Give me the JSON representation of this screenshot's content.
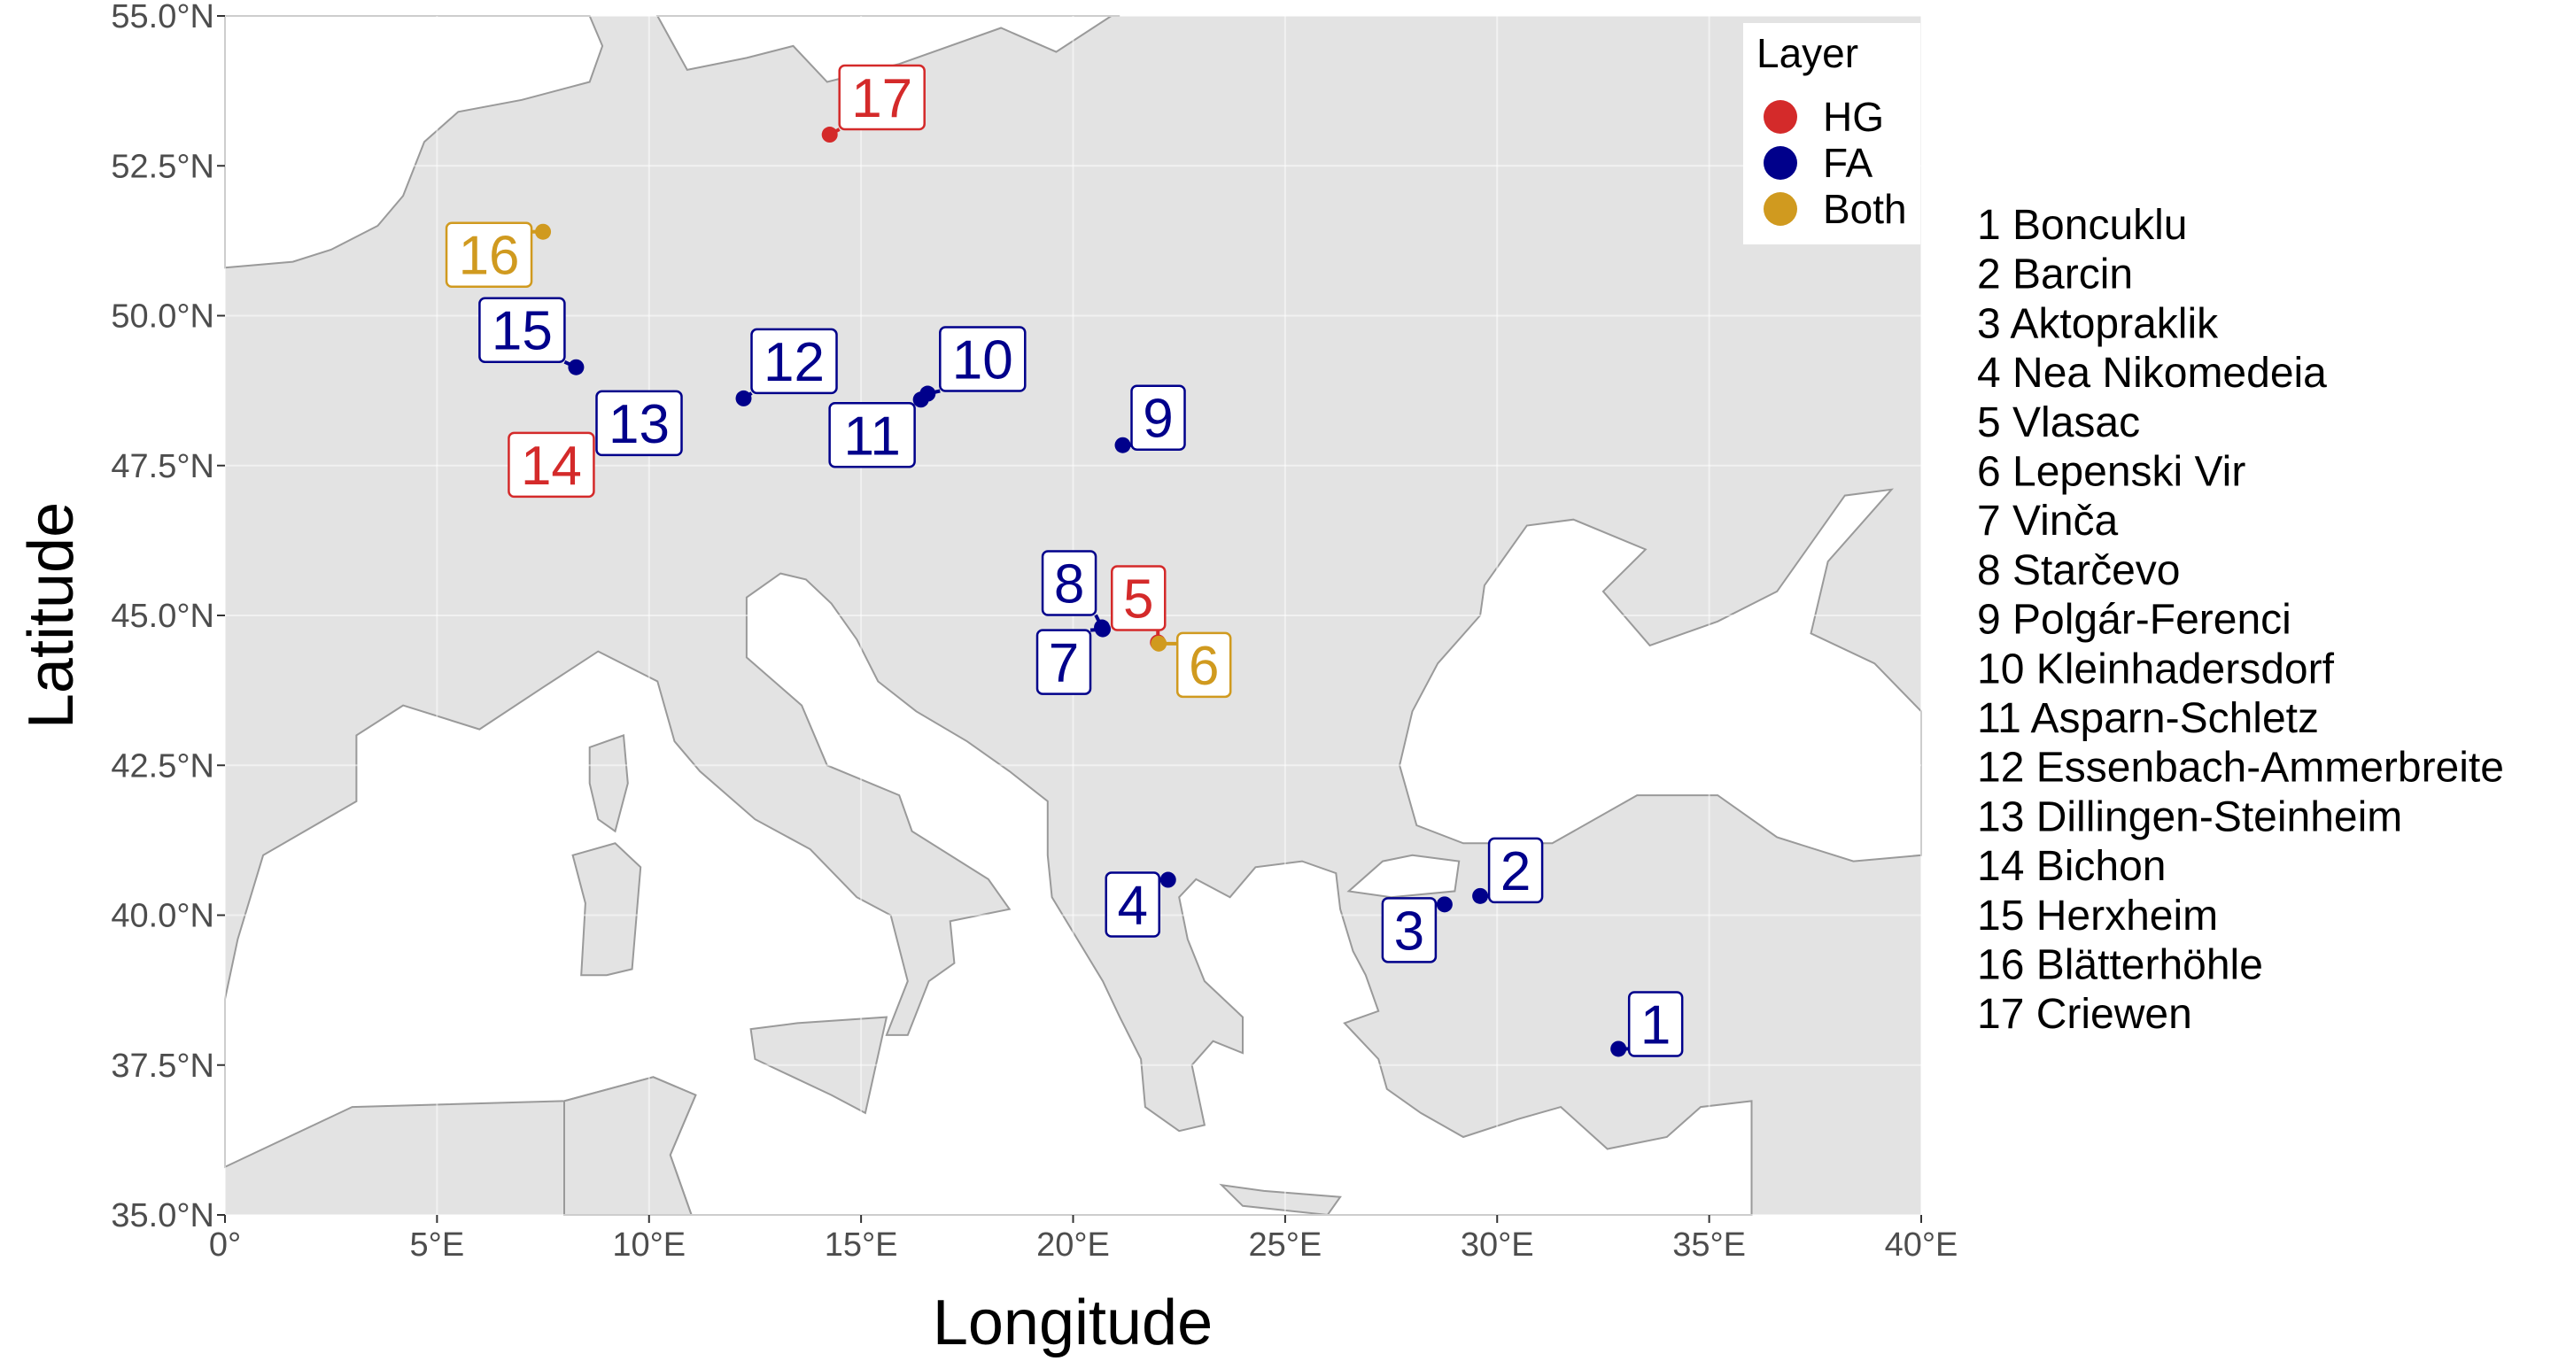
{
  "map": {
    "xlabel": "Longitude",
    "ylabel": "Latitude",
    "xlim": [
      0,
      40
    ],
    "ylim": [
      35,
      55
    ],
    "x_ticks": [
      "0°",
      "5°E",
      "10°E",
      "15°E",
      "20°E",
      "25°E",
      "30°E",
      "35°E",
      "40°E"
    ],
    "y_ticks": [
      "35.0°N",
      "37.5°N",
      "40.0°N",
      "42.5°N",
      "45.0°N",
      "47.5°N",
      "50.0°N",
      "52.5°N",
      "55.0°N"
    ],
    "land_color": "#e3e3e3",
    "sea_color": "#ffffff",
    "border_color": "#9a9a9a"
  },
  "legend": {
    "title": "Layer",
    "placement": "top-right",
    "items": [
      {
        "label": "HG",
        "color": "#d42a2a"
      },
      {
        "label": "FA",
        "color": "#00008b"
      },
      {
        "label": "Both",
        "color": "#d09a1f"
      }
    ]
  },
  "sites": [
    {
      "id": "1",
      "name": "1 Boncuklu",
      "layer": "FA",
      "lon": 32.86,
      "lat": 37.77
    },
    {
      "id": "2",
      "name": "2 Barcin",
      "layer": "FA",
      "lon": 29.6,
      "lat": 40.32
    },
    {
      "id": "3",
      "name": "3 Aktopraklik",
      "layer": "FA",
      "lon": 28.76,
      "lat": 40.18
    },
    {
      "id": "4",
      "name": "4 Nea Nikomedeia",
      "layer": "FA",
      "lon": 22.24,
      "lat": 40.59
    },
    {
      "id": "5",
      "name": "5 Vlasac",
      "layer": "HG",
      "lon": 22.0,
      "lat": 44.55
    },
    {
      "id": "6",
      "name": "6 Lepenski Vir",
      "layer": "Both",
      "lon": 22.02,
      "lat": 44.53
    },
    {
      "id": "7",
      "name": "7 Vinča",
      "layer": "FA",
      "lon": 20.7,
      "lat": 44.77
    },
    {
      "id": "8",
      "name": "8 Starčevo",
      "layer": "FA",
      "lon": 20.68,
      "lat": 44.8
    },
    {
      "id": "9",
      "name": "9 Polgár-Ferenci",
      "layer": "FA",
      "lon": 21.17,
      "lat": 47.84
    },
    {
      "id": "10",
      "name": "10 Kleinhadersdorf",
      "layer": "FA",
      "lon": 16.57,
      "lat": 48.7
    },
    {
      "id": "11",
      "name": "11 Asparn-Schletz",
      "layer": "FA",
      "lon": 16.41,
      "lat": 48.6
    },
    {
      "id": "12",
      "name": "12 Essenbach-Ammerbreite",
      "layer": "FA",
      "lon": 12.23,
      "lat": 48.62
    },
    {
      "id": "13",
      "name": "13 Dillingen-Steinheim",
      "layer": "FA",
      "lon": 10.58,
      "lat": 48.62
    },
    {
      "id": "14",
      "name": "14 Bichon",
      "layer": "HG",
      "lon": 6.86,
      "lat": 47.1
    },
    {
      "id": "15",
      "name": "15 Herxheim",
      "layer": "FA",
      "lon": 8.28,
      "lat": 49.14
    },
    {
      "id": "16",
      "name": "16 Blätterhöhle",
      "layer": "Both",
      "lon": 7.5,
      "lat": 51.4
    },
    {
      "id": "17",
      "name": "17 Criewen",
      "layer": "HG",
      "lon": 14.26,
      "lat": 53.02
    }
  ]
}
